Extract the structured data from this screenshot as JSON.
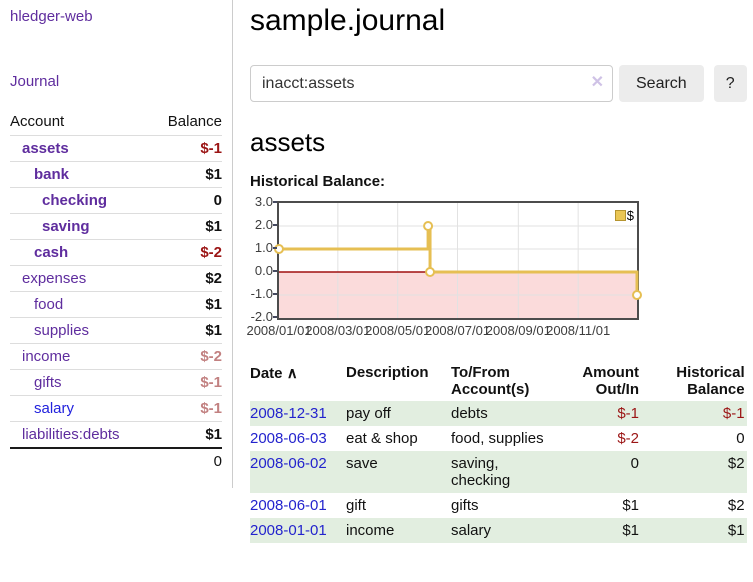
{
  "app": {
    "title": "hledger-web",
    "nav_journal": "Journal"
  },
  "sidebar": {
    "header": {
      "account": "Account",
      "balance": "Balance"
    },
    "accounts": [
      {
        "name": "assets",
        "balance": "$-1"
      },
      {
        "name": "bank",
        "balance": "$1"
      },
      {
        "name": "checking",
        "balance": "0"
      },
      {
        "name": "saving",
        "balance": "$1"
      },
      {
        "name": "cash",
        "balance": "$-2"
      },
      {
        "name": "expenses",
        "balance": "$2"
      },
      {
        "name": "food",
        "balance": "$1"
      },
      {
        "name": "supplies",
        "balance": "$1"
      },
      {
        "name": "income",
        "balance": "$-2"
      },
      {
        "name": "gifts",
        "balance": "$-1"
      },
      {
        "name": "salary",
        "balance": "$-1"
      },
      {
        "name": "liabilities:debts",
        "balance": "$1"
      }
    ],
    "total": "0"
  },
  "main": {
    "title": "sample.journal",
    "search": {
      "value": "inacct:assets",
      "clear_icon": "✕",
      "button_label": "Search",
      "help_label": "?"
    },
    "heading": "assets",
    "chart_title": "Historical Balance:"
  },
  "chart_data": {
    "type": "line",
    "step": true,
    "title": "Historical Balance",
    "x_range": [
      "2008-01-01",
      "2008-12-31"
    ],
    "ylim": [
      -2,
      3
    ],
    "y_ticks": [
      3.0,
      2.0,
      1.0,
      0.0,
      -1.0,
      -2.0
    ],
    "y_tick_labels": [
      "3.0",
      "2.0",
      "1.0",
      "0.0",
      "-1.0",
      "-2.0"
    ],
    "x_ticks": [
      {
        "date": "2008-01-01",
        "label": "2008/01/01"
      },
      {
        "date": "2008-03-01",
        "label": "2008/03/01"
      },
      {
        "date": "2008-05-01",
        "label": "2008/05/01"
      },
      {
        "date": "2008-07-01",
        "label": "2008/07/01"
      },
      {
        "date": "2008-09-01",
        "label": "2008/09/01"
      },
      {
        "date": "2008-11-01",
        "label": "2008/11/01"
      }
    ],
    "series": [
      {
        "name": "$",
        "color": "#e6bf53",
        "points": [
          [
            "2008-01-01",
            1
          ],
          [
            "2008-06-01",
            2
          ],
          [
            "2008-06-03",
            0
          ],
          [
            "2008-12-31",
            -1
          ]
        ]
      }
    ],
    "legend_position": "top-right",
    "grid": true,
    "negative_fill": "#fbdbdb",
    "zero_line_color": "#a01010"
  },
  "register": {
    "headers": {
      "date": "Date",
      "sort_icon": "∧",
      "description": "Description",
      "account": "To/From Account(s)",
      "amount": "Amount Out/In",
      "balance": "Historical Balance"
    },
    "rows": [
      {
        "date": "2008-12-31",
        "description": "pay off",
        "account": "debts",
        "amount": "$-1",
        "balance": "$-1"
      },
      {
        "date": "2008-06-03",
        "description": "eat & shop",
        "account": "food, supplies",
        "amount": "$-2",
        "balance": "0"
      },
      {
        "date": "2008-06-02",
        "description": "save",
        "account": "saving, checking",
        "amount": "0",
        "balance": "$2"
      },
      {
        "date": "2008-06-01",
        "description": "gift",
        "account": "gifts",
        "amount": "$1",
        "balance": "$2"
      },
      {
        "date": "2008-01-01",
        "description": "income",
        "account": "salary",
        "amount": "$1",
        "balance": "$1"
      }
    ]
  }
}
